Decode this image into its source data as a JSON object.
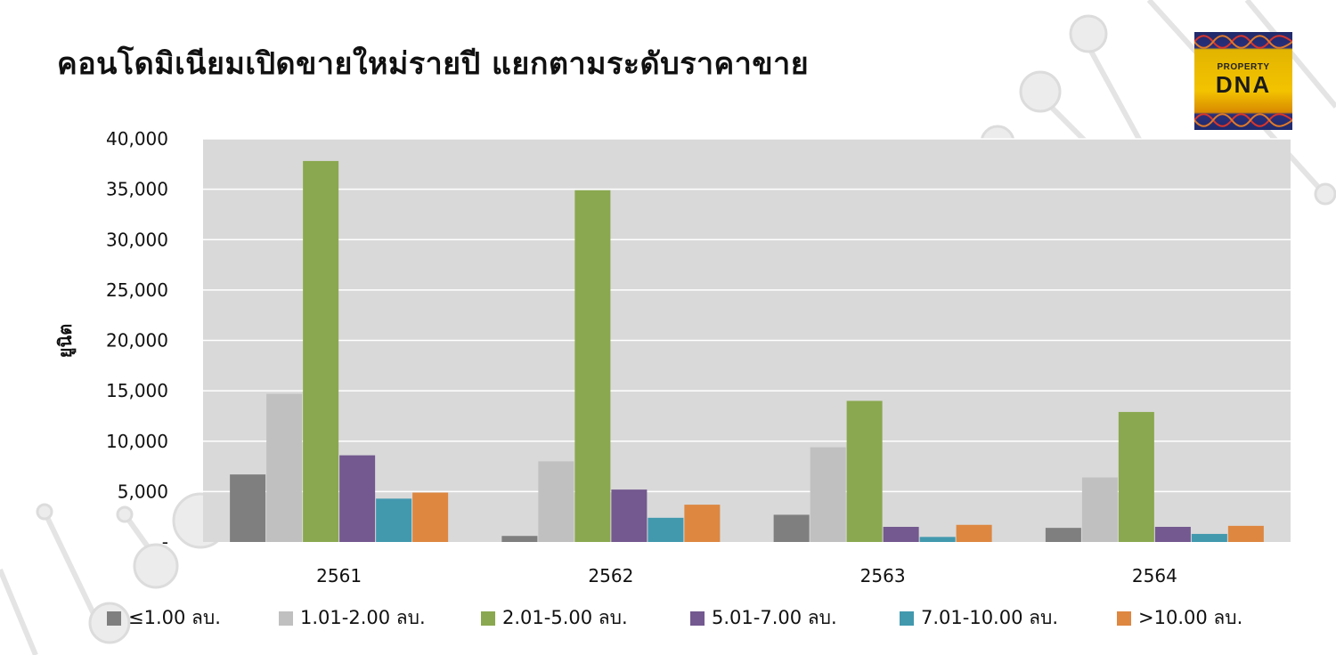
{
  "title": "คอนโดมิเนียมเปิดขายใหม่รายปี แยกตามระดับราคาขาย",
  "logo": {
    "top_text": "PROPERTY",
    "main_text": "DNA"
  },
  "chart_data": {
    "type": "bar",
    "title": "คอนโดมิเนียมเปิดขายใหม่รายปี แยกตามระดับราคาขาย",
    "xlabel": "",
    "ylabel": "ยูนิต",
    "ylim": [
      0,
      40000
    ],
    "yticks": [
      0,
      5000,
      10000,
      15000,
      20000,
      25000,
      30000,
      35000,
      40000
    ],
    "ytick_labels": [
      "-",
      "5,000",
      "10,000",
      "15,000",
      "20,000",
      "25,000",
      "30,000",
      "35,000",
      "40,000"
    ],
    "grid": true,
    "legend_position": "bottom",
    "categories": [
      "2561",
      "2562",
      "2563",
      "2564"
    ],
    "series": [
      {
        "name": "≤1.00 ลบ.",
        "color": "#7f7f7f",
        "values": [
          6700,
          600,
          2700,
          1400
        ]
      },
      {
        "name": "1.01-2.00 ลบ.",
        "color": "#c0c0c0",
        "values": [
          14700,
          8000,
          9400,
          6400
        ]
      },
      {
        "name": "2.01-5.00 ลบ.",
        "color": "#8aa84f",
        "values": [
          37800,
          34900,
          14000,
          12900
        ]
      },
      {
        "name": "5.01-7.00 ลบ.",
        "color": "#73598f",
        "values": [
          8600,
          5200,
          1500,
          1500
        ]
      },
      {
        "name": "7.01-10.00 ลบ.",
        "color": "#4299ae",
        "values": [
          4300,
          2400,
          500,
          800
        ]
      },
      {
        "name": ">10.00 ลบ.",
        "color": "#dd8741",
        "values": [
          4900,
          3700,
          1700,
          1600
        ]
      }
    ]
  }
}
